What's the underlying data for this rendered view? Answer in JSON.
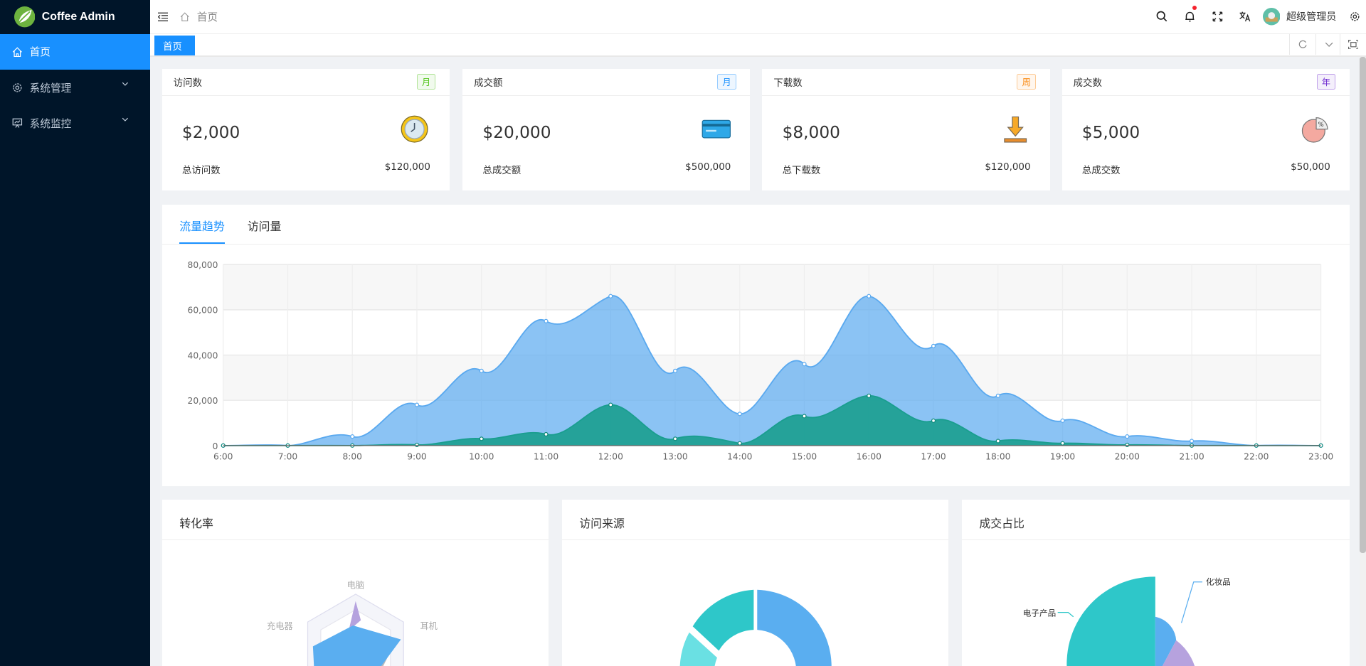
{
  "app": {
    "title": "Coffee Admin"
  },
  "sidebar": {
    "items": [
      {
        "label": "首页",
        "icon": "home-icon",
        "active": true
      },
      {
        "label": "系统管理",
        "icon": "gear-icon"
      },
      {
        "label": "系统监控",
        "icon": "monitor-icon"
      }
    ]
  },
  "header": {
    "breadcrumb": "首页",
    "user": "超级管理员",
    "notification_dot": true
  },
  "tabs": [
    {
      "label": "首页",
      "active": true
    }
  ],
  "stats": [
    {
      "title": "访问数",
      "badge": "月",
      "badge_color": "#52c41a",
      "value": "$2,000",
      "icon": "clock-icon",
      "footer_label": "总访问数",
      "footer_value": "$120,000"
    },
    {
      "title": "成交额",
      "badge": "月",
      "badge_color": "#1890ff",
      "value": "$20,000",
      "icon": "credit-card-icon",
      "footer_label": "总成交额",
      "footer_value": "$500,000"
    },
    {
      "title": "下载数",
      "badge": "周",
      "badge_color": "#fa8c16",
      "value": "$8,000",
      "icon": "download-icon",
      "footer_label": "总下载数",
      "footer_value": "$120,000"
    },
    {
      "title": "成交数",
      "badge": "年",
      "badge_color": "#722ed1",
      "value": "$5,000",
      "icon": "pie-percent-icon",
      "footer_label": "总成交数",
      "footer_value": "$50,000"
    }
  ],
  "traffic": {
    "tabs": [
      "流量趋势",
      "访问量"
    ],
    "active_tab": 0
  },
  "chart_data": [
    {
      "type": "area",
      "x": [
        "6:00",
        "7:00",
        "8:00",
        "9:00",
        "10:00",
        "11:00",
        "12:00",
        "13:00",
        "14:00",
        "15:00",
        "16:00",
        "17:00",
        "18:00",
        "19:00",
        "20:00",
        "21:00",
        "22:00",
        "23:00"
      ],
      "ylim": [
        0,
        80000
      ],
      "yticks": [
        "0",
        "20,000",
        "40,000",
        "60,000",
        "80,000"
      ],
      "grid": true,
      "series": [
        {
          "color": "#5aa9ef",
          "values": [
            0,
            0,
            4000,
            18000,
            33000,
            55000,
            66000,
            33000,
            14000,
            36000,
            66000,
            44000,
            22000,
            11000,
            4000,
            2000,
            0,
            0
          ]
        },
        {
          "color": "#1a9e8f",
          "values": [
            0,
            0,
            0,
            300,
            3000,
            5000,
            18000,
            3000,
            1000,
            13000,
            22000,
            11000,
            2000,
            1000,
            300,
            0,
            0,
            0
          ]
        }
      ]
    },
    {
      "type": "radar",
      "title": "转化率",
      "indicators": [
        "电脑",
        "耳机",
        "充电器"
      ]
    },
    {
      "type": "pie",
      "title": "访问来源"
    },
    {
      "type": "pie",
      "title": "成交占比",
      "labels": [
        "化妆品",
        "电子产品"
      ]
    }
  ]
}
